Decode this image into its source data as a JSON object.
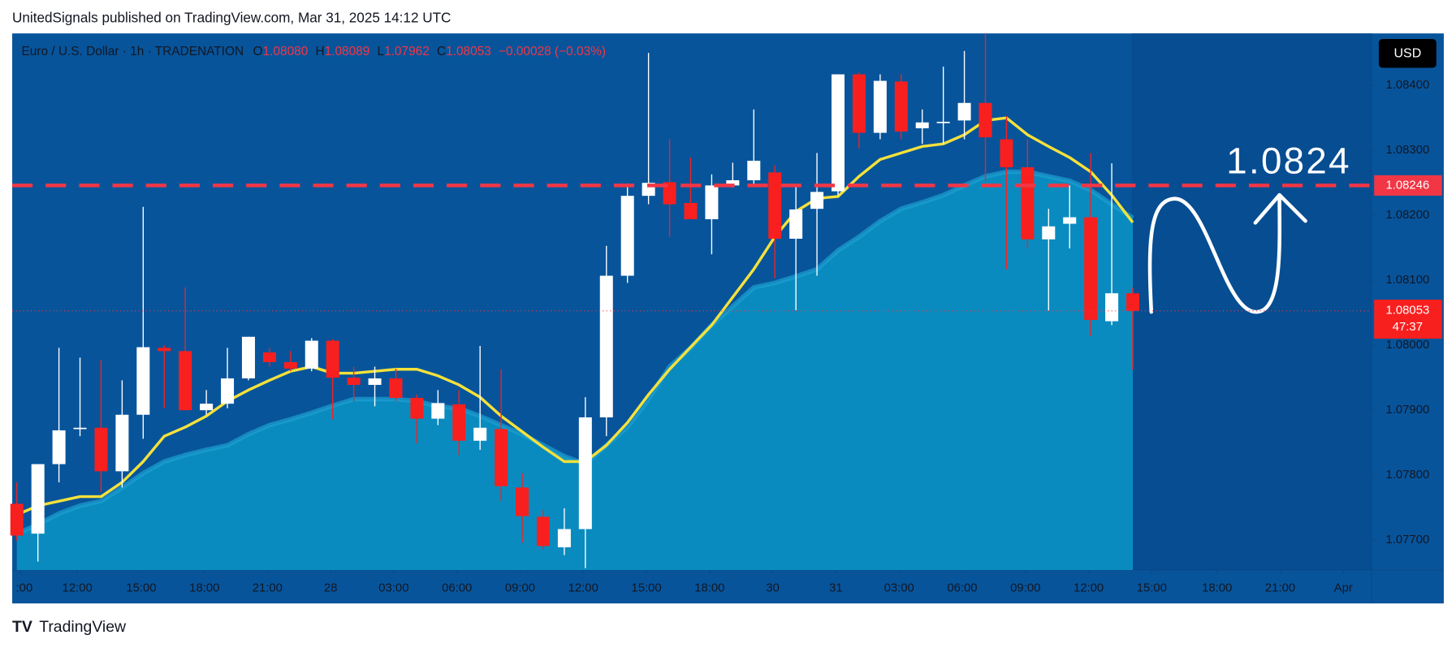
{
  "chart_data": {
    "type": "candlestick",
    "publisher": "UnitedSignals published on TradingView.com, Mar 31, 2025 14:12 UTC",
    "brand": "TradingView",
    "currency": "USD",
    "legend": {
      "symbol": "Euro / U.S. Dollar · 1h · TRADENATION",
      "o_label": "O",
      "o": "1.08080",
      "h_label": "H",
      "h": "1.08089",
      "l_label": "L",
      "l": "1.07962",
      "c_label": "C",
      "c": "1.08053",
      "change": "−0.00028 (−0.03%)"
    },
    "annotation": "1.0824",
    "up_color": "#ffffff",
    "down_color": "#f7201f",
    "x": [
      0,
      1,
      2,
      3,
      4,
      5,
      6,
      7,
      8,
      9,
      10,
      11,
      12,
      13,
      14,
      15,
      16,
      17,
      18,
      19,
      20,
      21,
      22,
      23,
      24,
      25,
      26,
      27,
      28,
      29,
      30,
      31,
      32,
      33,
      34,
      35,
      36,
      37,
      38,
      39,
      40,
      41,
      42,
      43,
      44,
      45,
      46,
      47,
      48,
      49,
      50,
      51,
      52,
      53
    ],
    "open": [
      1.07756,
      1.0771,
      1.07817,
      1.07871,
      1.07873,
      1.07806,
      1.07893,
      1.07996,
      1.07991,
      1.079,
      1.0791,
      1.07949,
      1.07989,
      1.07974,
      1.07964,
      1.08007,
      1.0795,
      1.07939,
      1.07949,
      1.07919,
      1.07887,
      1.07909,
      1.07853,
      1.07871,
      1.07781,
      1.07736,
      1.07689,
      1.07717,
      1.07889,
      1.08107,
      1.0823,
      1.08251,
      1.08219,
      1.08194,
      1.08246,
      1.08254,
      1.08266,
      1.08164,
      1.0821,
      1.08237,
      1.08417,
      1.08327,
      1.08406,
      1.08334,
      1.08344,
      1.08346,
      1.08373,
      1.08317,
      1.08274,
      1.08163,
      1.08187,
      1.08197,
      1.08037,
      1.0808
    ],
    "high": [
      1.07789,
      1.07817,
      1.07996,
      1.07981,
      1.07977,
      1.07946,
      1.08213,
      1.08,
      1.08089,
      1.07931,
      1.07996,
      1.08013,
      1.07996,
      1.07991,
      1.08011,
      1.08009,
      1.07967,
      1.07967,
      1.07964,
      1.07924,
      1.07931,
      1.07931,
      1.07999,
      1.07963,
      1.07803,
      1.07746,
      1.07749,
      1.0792,
      1.08153,
      1.08249,
      1.0845,
      1.08317,
      1.08289,
      1.08263,
      1.08281,
      1.08363,
      1.08277,
      1.08246,
      1.08296,
      1.08417,
      1.0842,
      1.08417,
      1.08417,
      1.08363,
      1.08429,
      1.08453,
      1.0848,
      1.08353,
      1.08317,
      1.0821,
      1.08246,
      1.08296,
      1.0828,
      1.08089
    ],
    "low": [
      1.07699,
      1.07667,
      1.07789,
      1.0786,
      1.07774,
      1.07781,
      1.07856,
      1.07903,
      1.079,
      1.07893,
      1.07903,
      1.07946,
      1.07967,
      1.0796,
      1.0796,
      1.07886,
      1.07914,
      1.07906,
      1.07914,
      1.07849,
      1.07877,
      1.07831,
      1.07839,
      1.0776,
      1.07696,
      1.07686,
      1.07677,
      1.07657,
      1.0786,
      1.08096,
      1.08217,
      1.08167,
      1.08194,
      1.0814,
      1.08243,
      1.08246,
      1.08103,
      1.08054,
      1.08107,
      1.08231,
      1.08303,
      1.08317,
      1.08317,
      1.0831,
      1.0831,
      1.08317,
      1.08253,
      1.08117,
      1.08149,
      1.08053,
      1.08149,
      1.08014,
      1.08031,
      1.07962
    ],
    "close": [
      1.07707,
      1.07817,
      1.07869,
      1.07873,
      1.07806,
      1.07893,
      1.07997,
      1.07991,
      1.079,
      1.0791,
      1.07949,
      1.08013,
      1.07974,
      1.07964,
      1.08007,
      1.0795,
      1.07939,
      1.07949,
      1.07919,
      1.07887,
      1.07911,
      1.07853,
      1.07873,
      1.07783,
      1.07737,
      1.07691,
      1.07717,
      1.07889,
      1.08107,
      1.0823,
      1.0825,
      1.08217,
      1.08194,
      1.08246,
      1.08254,
      1.08284,
      1.08164,
      1.08209,
      1.08236,
      1.08417,
      1.08327,
      1.08407,
      1.08329,
      1.08343,
      1.08344,
      1.08373,
      1.0832,
      1.08274,
      1.08163,
      1.08183,
      1.08197,
      1.08039,
      1.0808,
      1.08053
    ],
    "overlays": [
      {
        "type": "area",
        "color": "#0a8bbf",
        "values": [
          1.0771,
          1.07724,
          1.07741,
          1.07753,
          1.0776,
          1.07781,
          1.07803,
          1.07821,
          1.07831,
          1.07839,
          1.07846,
          1.07863,
          1.07877,
          1.07886,
          1.07896,
          1.07907,
          1.07917,
          1.07917,
          1.07917,
          1.07914,
          1.07906,
          1.07903,
          1.07891,
          1.07877,
          1.07863,
          1.07846,
          1.07829,
          1.07817,
          1.07846,
          1.07874,
          1.07917,
          1.07967,
          1.07996,
          1.08031,
          1.0806,
          1.08089,
          1.08096,
          1.08106,
          1.08117,
          1.08146,
          1.08167,
          1.08191,
          1.0821,
          1.0822,
          1.08231,
          1.08246,
          1.0826,
          1.08267,
          1.08267,
          1.0826,
          1.08253,
          1.08239,
          1.08217,
          1.08196
        ]
      },
      {
        "type": "line",
        "color": "#f5e13b",
        "values": [
          1.07739,
          1.07753,
          1.0776,
          1.07767,
          1.07767,
          1.07789,
          1.07821,
          1.0786,
          1.07874,
          1.07891,
          1.07914,
          1.07931,
          1.07946,
          1.0796,
          1.07967,
          1.07957,
          1.07957,
          1.0796,
          1.07963,
          1.07963,
          1.07953,
          1.07939,
          1.0792,
          1.07891,
          1.07867,
          1.07843,
          1.07821,
          1.07821,
          1.07846,
          1.07881,
          1.07924,
          1.07963,
          1.07997,
          1.08031,
          1.08074,
          1.08117,
          1.08167,
          1.08206,
          1.08226,
          1.08229,
          1.0826,
          1.08286,
          1.08296,
          1.08306,
          1.0831,
          1.08324,
          1.08346,
          1.0835,
          1.08324,
          1.08306,
          1.08289,
          1.08267,
          1.08231,
          1.08189
        ]
      }
    ],
    "hline": {
      "value": 1.08246,
      "label": "1.08246",
      "color": "#f23645"
    },
    "last": {
      "value": 1.08053,
      "label": "1.08053",
      "countdown": "47:37"
    },
    "xlim": [
      -0.22,
      64.33
    ],
    "xticks": [
      {
        "value": 0.18,
        "label": ":00"
      },
      {
        "value": 2.87,
        "label": "12:00"
      },
      {
        "value": 5.91,
        "label": "15:00"
      },
      {
        "value": 8.91,
        "label": "18:00"
      },
      {
        "value": 11.9,
        "label": "21:00"
      },
      {
        "value": 14.9,
        "label": "28"
      },
      {
        "value": 17.9,
        "label": "03:00"
      },
      {
        "value": 20.9,
        "label": "06:00"
      },
      {
        "value": 23.9,
        "label": "09:00"
      },
      {
        "value": 26.9,
        "label": "12:00"
      },
      {
        "value": 29.9,
        "label": "15:00"
      },
      {
        "value": 32.9,
        "label": "18:00"
      },
      {
        "value": 35.9,
        "label": "30"
      },
      {
        "value": 38.9,
        "label": "31"
      },
      {
        "value": 41.9,
        "label": "03:00"
      },
      {
        "value": 44.9,
        "label": "06:00"
      },
      {
        "value": 47.9,
        "label": "09:00"
      },
      {
        "value": 50.9,
        "label": "12:00"
      },
      {
        "value": 53.9,
        "label": "15:00"
      },
      {
        "value": 57.0,
        "label": "18:00"
      },
      {
        "value": 60.0,
        "label": "21:00"
      },
      {
        "value": 63.0,
        "label": "Apr"
      }
    ],
    "ylim": [
      1.07654,
      1.0848
    ],
    "yticks": [
      {
        "value": 1.084,
        "label": "1.08400"
      },
      {
        "value": 1.083,
        "label": "1.08300"
      },
      {
        "value": 1.082,
        "label": "1.08200"
      },
      {
        "value": 1.081,
        "label": "1.08100"
      },
      {
        "value": 1.08,
        "label": "1.08000"
      },
      {
        "value": 1.079,
        "label": "1.07900"
      },
      {
        "value": 1.078,
        "label": "1.07800"
      },
      {
        "value": 1.077,
        "label": "1.07700"
      }
    ]
  }
}
